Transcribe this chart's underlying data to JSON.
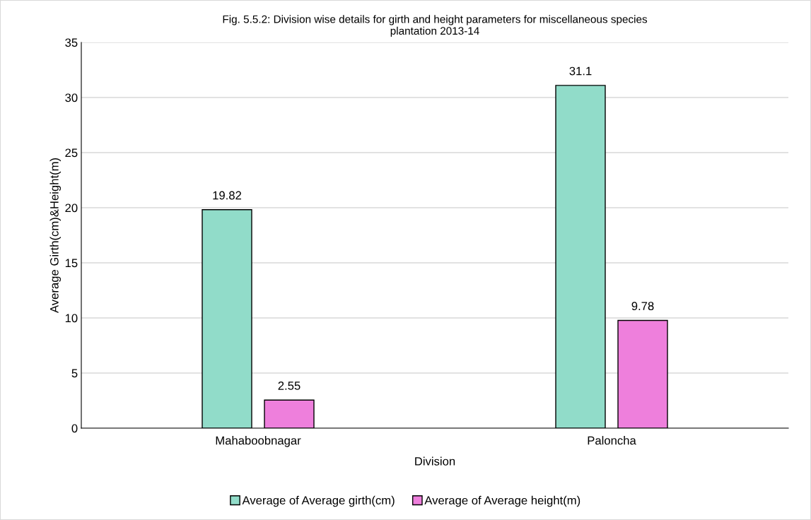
{
  "chart_data": {
    "type": "bar",
    "title": "Fig. 5.5.2: Division wise details for girth and height parameters for miscellaneous species\nplantation 2013-14",
    "xlabel": "Division",
    "ylabel": "Average Girth(cm)&Height(m)",
    "categories": [
      "Mahaboobnagar",
      "Paloncha"
    ],
    "series": [
      {
        "name": "Average of Average girth(cm)",
        "color": "#91dcc9",
        "values": [
          19.82,
          31.1
        ]
      },
      {
        "name": "Average of Average height(m)",
        "color": "#ee7fdc",
        "values": [
          2.55,
          9.78
        ]
      }
    ],
    "ylim": [
      0,
      35
    ],
    "yticks": [
      0,
      5,
      10,
      15,
      20,
      25,
      30,
      35
    ],
    "grid": "y",
    "legend": "bottom",
    "data_labels": true
  }
}
